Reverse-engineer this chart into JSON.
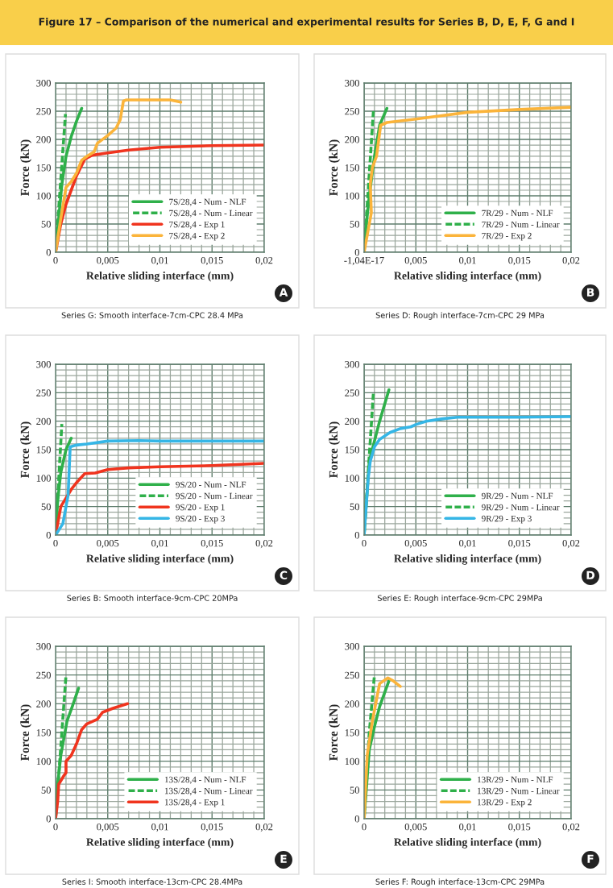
{
  "chart_data": [
    {
      "type": "line",
      "title": "Figure 17 – Comparison of the numerical and experimental results for Series B, D, E, F, G and I",
      "xlabel": "Relative sliding interface (mm)",
      "ylabel": "Force (kN)",
      "xlim": [
        0,
        0.02
      ],
      "ylim": [
        0,
        300
      ],
      "xticks": [
        0,
        {
          "value": 0.005,
          "label": "0,005"
        },
        {
          "value": 0.01,
          "label": "0,01"
        },
        {
          "value": 0.015,
          "label": "0,015"
        },
        {
          "value": 0.02,
          "label": "0,02"
        }
      ],
      "yticks": [
        0,
        50,
        100,
        150,
        200,
        250,
        300
      ],
      "grid": true,
      "legend": "bottom right",
      "annotations": [
        "Series G: Smooth interface-7cm-CPC 28.4 MPa",
        "A"
      ],
      "series": [
        {
          "name": "7S/28,4 - Num - NLF",
          "color": "#2fb04a",
          "line_style": "solid",
          "x": [
            0,
            0.0003,
            0.0006,
            0.001,
            0.0015,
            0.002,
            0.0025
          ],
          "values": [
            0,
            60,
            120,
            170,
            205,
            232,
            255
          ]
        },
        {
          "name": "7S/28,4 - Num - Linear",
          "color": "#2fb04a",
          "line_style": "dashed",
          "x": [
            0,
            0.00095
          ],
          "values": [
            0,
            245
          ]
        },
        {
          "name": "7S/28,4 - Exp 1",
          "color": "#f0341e",
          "line_style": "solid",
          "x": [
            0,
            0.0005,
            0.001,
            0.002,
            0.0028,
            0.0035,
            0.005,
            0.007,
            0.01,
            0.015,
            0.02
          ],
          "values": [
            0,
            50,
            85,
            135,
            165,
            172,
            176,
            181,
            186,
            189,
            190
          ]
        },
        {
          "name": "7S/28,4 - Exp 2",
          "color": "#fbb43a",
          "line_style": "solid",
          "x": [
            0,
            0.0005,
            0.001,
            0.0015,
            0.002,
            0.0025,
            0.003,
            0.0037,
            0.004,
            0.005,
            0.0058,
            0.0062,
            0.0065,
            0.0068,
            0.011,
            0.012
          ],
          "values": [
            0,
            60,
            115,
            125,
            140,
            163,
            170,
            178,
            193,
            207,
            220,
            235,
            268,
            270,
            270,
            266
          ]
        }
      ]
    },
    {
      "type": "line",
      "xlabel": "Relative sliding interface (mm)",
      "ylabel": "Force (kN)",
      "xlim": [
        0,
        0.02
      ],
      "ylim": [
        0,
        300
      ],
      "xticks": [
        {
          "value": 0,
          "label": "-1,04E-17"
        },
        {
          "value": 0.005,
          "label": "0,005"
        },
        {
          "value": 0.01,
          "label": "0,01"
        },
        {
          "value": 0.015,
          "label": "0,015"
        },
        {
          "value": 0.02,
          "label": "0,02"
        }
      ],
      "yticks": [
        0,
        50,
        100,
        150,
        200,
        250,
        300
      ],
      "grid": true,
      "legend": "bottom right",
      "annotations": [
        "Series D: Rough interface-7cm-CPC 29 MPa",
        "B"
      ],
      "series": [
        {
          "name": "7R/29 - Num - NLF",
          "color": "#2fb04a",
          "line_style": "solid",
          "x": [
            0,
            0.0005,
            0.001,
            0.0015,
            0.0022
          ],
          "values": [
            10,
            100,
            170,
            225,
            255
          ]
        },
        {
          "name": "7R/29 - Num - Linear",
          "color": "#2fb04a",
          "line_style": "dashed",
          "x": [
            0,
            0.0009
          ],
          "values": [
            0,
            250
          ]
        },
        {
          "name": "7R/29 - Exp 2",
          "color": "#fbb43a",
          "line_style": "solid",
          "x": [
            0,
            0.0007,
            0.0006,
            0.0008,
            0.0012,
            0.0016,
            0.0022,
            0.005,
            0.01,
            0.015,
            0.02
          ],
          "values": [
            0,
            70,
            120,
            150,
            170,
            225,
            230,
            236,
            248,
            253,
            257
          ]
        }
      ]
    },
    {
      "type": "line",
      "xlabel": "Relative sliding interface (mm)",
      "ylabel": "Force (kN)",
      "xlim": [
        0,
        0.02
      ],
      "ylim": [
        0,
        300
      ],
      "xticks": [
        0,
        {
          "value": 0.005,
          "label": "0,005"
        },
        {
          "value": 0.01,
          "label": "0,01"
        },
        {
          "value": 0.015,
          "label": "0,015"
        },
        {
          "value": 0.02,
          "label": "0,02"
        }
      ],
      "yticks": [
        0,
        50,
        100,
        150,
        200,
        250,
        300
      ],
      "grid": true,
      "legend": "bottom right",
      "annotations": [
        "Series B: Smooth interface-9cm-CPC 20MPa",
        "C"
      ],
      "series": [
        {
          "name": "9S/20 - Num - NLF",
          "color": "#2fb04a",
          "line_style": "solid",
          "x": [
            0,
            0.0002,
            0.0005,
            0.001,
            0.0015
          ],
          "values": [
            0,
            60,
            110,
            150,
            170
          ]
        },
        {
          "name": "9S/20 - Num - Linear",
          "color": "#2fb04a",
          "line_style": "dashed",
          "x": [
            0,
            0.0006
          ],
          "values": [
            0,
            195
          ]
        },
        {
          "name": "9S/20 - Exp 1",
          "color": "#f0341e",
          "line_style": "solid",
          "x": [
            0,
            0.0003,
            0.0005,
            0.001,
            0.0015,
            0.002,
            0.0028,
            0.0038,
            0.005,
            0.007,
            0.01,
            0.015,
            0.02
          ],
          "values": [
            0,
            30,
            50,
            65,
            80,
            92,
            108,
            109,
            115,
            118,
            120,
            122,
            126
          ]
        },
        {
          "name": "9S/20 - Exp 3",
          "color": "#35b6e6",
          "line_style": "solid",
          "x": [
            0,
            0.0007,
            0.0012,
            0.0014,
            0.002,
            0.003,
            0.005,
            0.008,
            0.01,
            0.02
          ],
          "values": [
            0,
            20,
            70,
            155,
            158,
            160,
            165,
            166,
            165,
            165
          ]
        }
      ]
    },
    {
      "type": "line",
      "xlabel": "Relative sliding interface (mm)",
      "ylabel": "Force (kN)",
      "xlim": [
        0,
        0.02
      ],
      "ylim": [
        0,
        300
      ],
      "xticks": [
        0,
        {
          "value": 0.005,
          "label": "0,005"
        },
        {
          "value": 0.01,
          "label": "0,01"
        },
        {
          "value": 0.015,
          "label": "0,015"
        },
        {
          "value": 0.02,
          "label": "0,02"
        }
      ],
      "yticks": [
        0,
        50,
        100,
        150,
        200,
        250,
        300
      ],
      "grid": true,
      "legend": "bottom right",
      "annotations": [
        "Series E: Rough interface-9cm-CPC 29MPa",
        "D"
      ],
      "series": [
        {
          "name": "9R/29 - Num - NLF",
          "color": "#2fb04a",
          "line_style": "solid",
          "x": [
            0,
            0.0005,
            0.0015,
            0.0024
          ],
          "values": [
            0,
            130,
            200,
            255
          ]
        },
        {
          "name": "9R/29 - Num - Linear",
          "color": "#2fb04a",
          "line_style": "dashed",
          "x": [
            0,
            0.0009
          ],
          "values": [
            0,
            250
          ]
        },
        {
          "name": "9R/29 - Exp 3",
          "color": "#35b6e6",
          "line_style": "solid",
          "x": [
            0,
            0.0002,
            0.0004,
            0.0006,
            0.001,
            0.0015,
            0.0025,
            0.0035,
            0.0045,
            0.005,
            0.006,
            0.0075,
            0.009,
            0.015,
            0.02
          ],
          "values": [
            0,
            50,
            100,
            130,
            155,
            168,
            180,
            187,
            190,
            194,
            200,
            204,
            207,
            207,
            208
          ]
        }
      ]
    },
    {
      "type": "line",
      "xlabel": "Relative sliding interface (mm)",
      "ylabel": "Force (kN)",
      "xlim": [
        0,
        0.02
      ],
      "ylim": [
        0,
        300
      ],
      "xticks": [
        0,
        {
          "value": 0.005,
          "label": "0,005"
        },
        {
          "value": 0.01,
          "label": "0,01"
        },
        {
          "value": 0.015,
          "label": "0,015"
        },
        {
          "value": 0.02,
          "label": "0,02"
        }
      ],
      "yticks": [
        0,
        50,
        100,
        150,
        200,
        250,
        300
      ],
      "grid": true,
      "legend": "bottom right",
      "annotations": [
        "Series I: Smooth interface-13cm-CPC 28.4MPa",
        "E"
      ],
      "series": [
        {
          "name": "13S/28,4 - Num - NLF",
          "color": "#2fb04a",
          "line_style": "solid",
          "x": [
            0,
            0.0002,
            0.0005,
            0.0011,
            0.0016,
            0.0022
          ],
          "values": [
            0,
            60,
            110,
            170,
            195,
            227
          ]
        },
        {
          "name": "13S/28,4 - Num - Linear",
          "color": "#2fb04a",
          "line_style": "dashed",
          "x": [
            0,
            0.001
          ],
          "values": [
            0,
            250
          ]
        },
        {
          "name": "13S/28,4 - Exp 1",
          "color": "#f0341e",
          "line_style": "solid",
          "x": [
            0,
            0.0002,
            0.0003,
            0.0008,
            0.001,
            0.001,
            0.0015,
            0.002,
            0.0025,
            0.003,
            0.004,
            0.0045,
            0.0055,
            0.0069
          ],
          "values": [
            0,
            30,
            60,
            75,
            80,
            100,
            110,
            130,
            155,
            165,
            173,
            185,
            192,
            200
          ]
        }
      ]
    },
    {
      "type": "line",
      "xlabel": "Relative sliding interface (mm)",
      "ylabel": "Force (kN)",
      "xlim": [
        0,
        0.02
      ],
      "ylim": [
        0,
        300
      ],
      "xticks": [
        0,
        {
          "value": 0.005,
          "label": "0,005"
        },
        {
          "value": 0.01,
          "label": "0,01"
        },
        {
          "value": 0.015,
          "label": "0,015"
        },
        {
          "value": 0.02,
          "label": "0,02"
        }
      ],
      "yticks": [
        0,
        50,
        100,
        150,
        200,
        250,
        300
      ],
      "grid": true,
      "legend": "bottom right",
      "annotations": [
        "Series F: Rough interface-13cm-CPC 29MPa",
        "F"
      ],
      "series": [
        {
          "name": "13R/29 - Num - NLF",
          "color": "#2fb04a",
          "line_style": "solid",
          "x": [
            0,
            0.0005,
            0.001,
            0.0015,
            0.0024
          ],
          "values": [
            0,
            120,
            160,
            195,
            240
          ]
        },
        {
          "name": "13R/29 - Num - Linear",
          "color": "#2fb04a",
          "line_style": "dashed",
          "x": [
            0,
            0.0005,
            0.001
          ],
          "values": [
            0,
            150,
            250
          ]
        },
        {
          "name": "13R/29 - Exp 2",
          "color": "#fbb43a",
          "line_style": "solid",
          "x": [
            0,
            0.0003,
            0.0008,
            0.0015,
            0.0023,
            0.0028,
            0.0035
          ],
          "values": [
            0,
            110,
            170,
            235,
            245,
            240,
            230
          ]
        }
      ]
    }
  ]
}
